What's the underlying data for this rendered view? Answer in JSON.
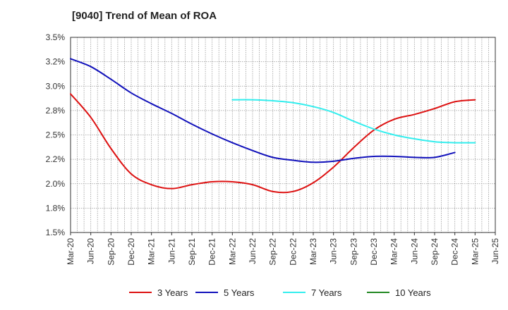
{
  "chart_data": {
    "type": "line",
    "title": "[9040]  Trend of Mean of ROA",
    "xlabel": "",
    "ylabel": "",
    "x_tick_labels": [
      "Mar-20",
      "Jun-20",
      "Sep-20",
      "Dec-20",
      "Mar-21",
      "Jun-21",
      "Sep-21",
      "Dec-21",
      "Mar-22",
      "Jun-22",
      "Sep-22",
      "Dec-22",
      "Mar-23",
      "Jun-23",
      "Sep-23",
      "Dec-23",
      "Mar-24",
      "Jun-24",
      "Sep-24",
      "Dec-24",
      "Mar-25",
      "Jun-25"
    ],
    "y_tick_labels": [
      "1.5%",
      "1.8%",
      "2.0%",
      "2.2%",
      "2.5%",
      "2.8%",
      "3.0%",
      "3.2%",
      "3.5%"
    ],
    "ylim": [
      1.5,
      3.5
    ],
    "grid": true,
    "legend_position": "bottom",
    "series": [
      {
        "name": "3 Years",
        "color": "#dd1111",
        "values": [
          2.92,
          2.68,
          2.36,
          2.1,
          1.99,
          1.95,
          1.99,
          2.02,
          2.02,
          1.99,
          1.92,
          1.92,
          2.01,
          2.17,
          2.37,
          2.55,
          2.66,
          2.71,
          2.77,
          2.84,
          2.86,
          null
        ]
      },
      {
        "name": "5 Years",
        "color": "#1111bb",
        "values": [
          3.28,
          3.2,
          3.07,
          2.93,
          2.82,
          2.72,
          2.61,
          2.51,
          2.42,
          2.34,
          2.27,
          2.24,
          2.22,
          2.23,
          2.26,
          2.28,
          2.28,
          2.27,
          2.27,
          2.32,
          null,
          null
        ]
      },
      {
        "name": "7 Years",
        "color": "#33eeee",
        "values": [
          null,
          null,
          null,
          null,
          null,
          null,
          null,
          null,
          2.86,
          2.86,
          2.85,
          2.83,
          2.79,
          2.73,
          2.64,
          2.56,
          2.5,
          2.46,
          2.43,
          2.42,
          2.42,
          null
        ]
      },
      {
        "name": "10 Years",
        "color": "#228822",
        "values": [
          null,
          null,
          null,
          null,
          null,
          null,
          null,
          null,
          null,
          null,
          null,
          null,
          null,
          null,
          null,
          null,
          null,
          null,
          null,
          null,
          null,
          null
        ]
      }
    ]
  }
}
